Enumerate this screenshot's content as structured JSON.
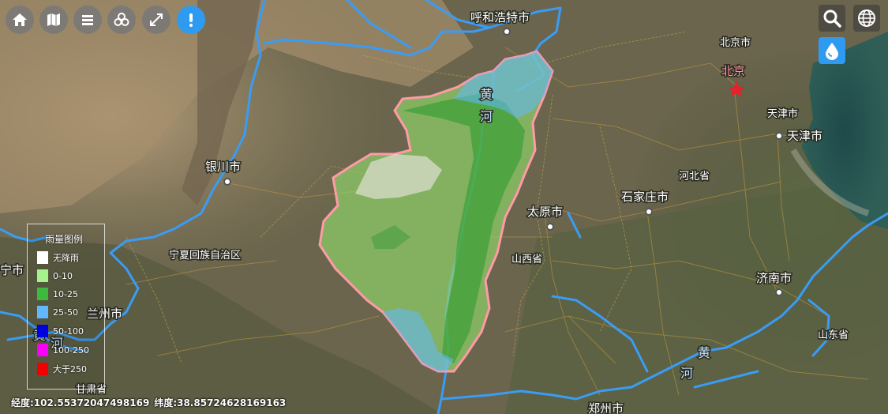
{
  "toolbar": {
    "buttons": [
      {
        "icon": "home-icon"
      },
      {
        "icon": "map-icon"
      },
      {
        "icon": "layers-icon"
      },
      {
        "icon": "cluster-icon"
      },
      {
        "icon": "fullscreen-icon"
      },
      {
        "icon": "alert-icon",
        "active": true
      }
    ]
  },
  "right_tools": [
    {
      "icon": "search-icon"
    },
    {
      "icon": "globe-icon"
    },
    {
      "icon": "rain-drop-icon"
    }
  ],
  "map_labels": {
    "hohhot": "呼和浩特市",
    "beijing_city": "北京市",
    "beijing": "北京",
    "tianjin_city": "天津市",
    "tianjin": "天津市",
    "yinchuan": "银川市",
    "hebei": "河北省",
    "shijiazhuang": "石家庄市",
    "taiyuan": "太原市",
    "shanxi": "山西省",
    "ningxia": "宁夏回族自治区",
    "jinan": "济南市",
    "shandong": "山东省",
    "lanzhou": "兰州市",
    "gansu": "甘肃省",
    "zhengzhou": "郑州市",
    "xining_fragment": "宁市",
    "river_yellow_1": "黄",
    "river_yellow_2": "河",
    "river_yellow_3": "黄",
    "river_yellow_4": "河",
    "river_yellow_5": "黄",
    "river_yellow_6": "河"
  },
  "legend": {
    "title": "雨量图例",
    "items": [
      {
        "label": "无降雨",
        "color": "#ffffff"
      },
      {
        "label": "0-10",
        "color": "#a6f28f"
      },
      {
        "label": "10-25",
        "color": "#3dba3d"
      },
      {
        "label": "25-50",
        "color": "#61b8ff"
      },
      {
        "label": "50-100",
        "color": "#0000e1"
      },
      {
        "label": "100-250",
        "color": "#fa00fa"
      },
      {
        "label": "大于250",
        "color": "#f00000"
      }
    ]
  },
  "status": {
    "longitude": "经度:102.55372047498169",
    "latitude": "纬度:38.85724628169163"
  },
  "colors": {
    "accent": "#2f9bf0",
    "river": "#3a9cf5",
    "basin_border": "#ff9aa6",
    "capital_star": "#e8202a"
  }
}
